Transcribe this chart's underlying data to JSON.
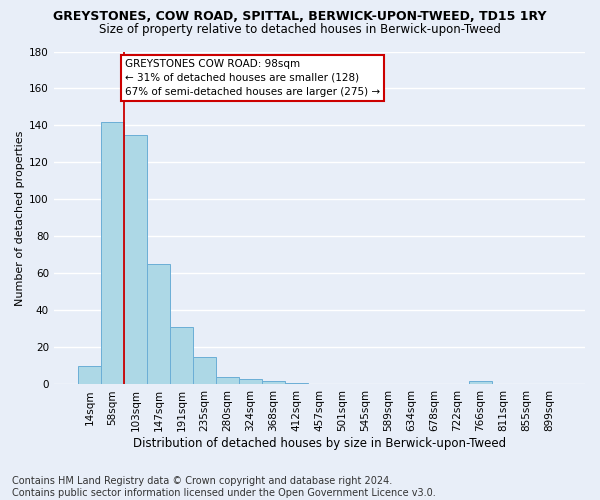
{
  "title": "GREYSTONES, COW ROAD, SPITTAL, BERWICK-UPON-TWEED, TD15 1RY",
  "subtitle": "Size of property relative to detached houses in Berwick-upon-Tweed",
  "xlabel": "Distribution of detached houses by size in Berwick-upon-Tweed",
  "ylabel": "Number of detached properties",
  "bar_values": [
    10,
    142,
    135,
    65,
    31,
    15,
    4,
    3,
    2,
    1,
    0,
    0,
    0,
    0,
    0,
    0,
    0,
    2,
    0,
    0,
    0
  ],
  "bar_labels": [
    "14sqm",
    "58sqm",
    "103sqm",
    "147sqm",
    "191sqm",
    "235sqm",
    "280sqm",
    "324sqm",
    "368sqm",
    "412sqm",
    "457sqm",
    "501sqm",
    "545sqm",
    "589sqm",
    "634sqm",
    "678sqm",
    "722sqm",
    "766sqm",
    "811sqm",
    "855sqm",
    "899sqm"
  ],
  "bar_color": "#add8e6",
  "bar_edge_color": "#6baed6",
  "vline_color": "#cc0000",
  "annotation_box_text": "GREYSTONES COW ROAD: 98sqm\n← 31% of detached houses are smaller (128)\n67% of semi-detached houses are larger (275) →",
  "annotation_box_color": "#cc0000",
  "annotation_box_bg": "#ffffff",
  "ylim": [
    0,
    180
  ],
  "yticks": [
    0,
    20,
    40,
    60,
    80,
    100,
    120,
    140,
    160,
    180
  ],
  "footer": "Contains HM Land Registry data © Crown copyright and database right 2024.\nContains public sector information licensed under the Open Government Licence v3.0.",
  "bg_color": "#e8eef8",
  "plot_bg_color": "#e8eef8",
  "grid_color": "#ffffff",
  "title_fontsize": 9,
  "subtitle_fontsize": 8.5,
  "xlabel_fontsize": 8.5,
  "ylabel_fontsize": 8,
  "footer_fontsize": 7,
  "tick_fontsize": 7.5
}
